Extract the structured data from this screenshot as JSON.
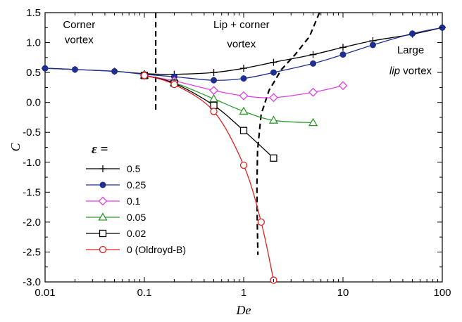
{
  "chart_data": {
    "type": "line",
    "xscale": "log",
    "xlim": [
      0.01,
      100
    ],
    "ylim": [
      -3.0,
      1.5
    ],
    "xlabel": "De",
    "ylabel": "C",
    "xticks": [
      0.01,
      0.1,
      1,
      10,
      100
    ],
    "xtick_labels": [
      "0.01",
      "0.1",
      "1",
      "10",
      "100"
    ],
    "yticks": [
      1.5,
      1.0,
      0.5,
      0.0,
      -0.5,
      -1.0,
      -1.5,
      -2.0,
      -2.5,
      -3.0
    ],
    "ytick_labels": [
      "1.5",
      "1.0",
      "0.5",
      "0.0",
      "-0.5",
      "-1.0",
      "-1.5",
      "-2.0",
      "-2.5",
      "-3.0"
    ],
    "grid": false,
    "legend": {
      "title": "ε =",
      "placement": "bottom-left"
    },
    "series": [
      {
        "name": "0.5",
        "color": "#000000",
        "marker": "plus",
        "x": [
          0.01,
          0.02,
          0.05,
          0.1,
          0.2,
          0.5,
          1,
          2,
          5,
          10,
          20,
          50,
          100
        ],
        "y": [
          0.57,
          0.55,
          0.52,
          0.48,
          0.47,
          0.5,
          0.57,
          0.67,
          0.8,
          0.92,
          1.03,
          1.14,
          1.25
        ]
      },
      {
        "name": "0.25",
        "color": "#1f2f8f",
        "marker": "filled-circle",
        "x": [
          0.01,
          0.02,
          0.05,
          0.1,
          0.2,
          0.5,
          1,
          2,
          5,
          10,
          20,
          50,
          100
        ],
        "y": [
          0.57,
          0.55,
          0.52,
          0.47,
          0.43,
          0.37,
          0.4,
          0.5,
          0.65,
          0.8,
          0.96,
          1.15,
          1.25
        ]
      },
      {
        "name": "0.1",
        "color": "#e040e0",
        "marker": "open-diamond",
        "x": [
          0.1,
          0.2,
          0.5,
          1,
          2,
          5,
          10
        ],
        "y": [
          0.45,
          0.36,
          0.2,
          0.11,
          0.08,
          0.17,
          0.28
        ]
      },
      {
        "name": "0.05",
        "color": "#2e9a2e",
        "marker": "open-triangle",
        "x": [
          0.1,
          0.2,
          0.5,
          1,
          2,
          5
        ],
        "y": [
          0.45,
          0.33,
          0.06,
          -0.15,
          -0.3,
          -0.34
        ]
      },
      {
        "name": "0.02",
        "color": "#000000",
        "marker": "open-square",
        "x": [
          0.1,
          0.2,
          0.5,
          1,
          2
        ],
        "y": [
          0.45,
          0.32,
          -0.05,
          -0.47,
          -0.93
        ]
      },
      {
        "name": "0 (Oldroyd-B)",
        "color": "#e02020",
        "marker": "open-circle",
        "x": [
          0.1,
          0.2,
          0.5,
          1,
          1.5,
          2
        ],
        "y": [
          0.45,
          0.3,
          -0.15,
          -1.05,
          -2.0,
          -2.97
        ]
      }
    ],
    "boundaries": [
      {
        "style": "dashed",
        "color": "#000000",
        "x": [
          0.13,
          0.13
        ],
        "y": [
          1.5,
          -0.13
        ]
      },
      {
        "style": "dashed",
        "color": "#000000",
        "x": [
          5.8,
          4.6,
          3.3,
          2.4,
          1.8,
          1.5,
          1.38,
          1.36,
          1.37,
          1.39
        ],
        "y": [
          1.5,
          1.1,
          0.8,
          0.55,
          0.2,
          -0.2,
          -0.8,
          -1.4,
          -2.0,
          -2.55
        ]
      }
    ],
    "annotations": [
      {
        "lines": [
          "Corner",
          "vortex"
        ],
        "x": 0.022,
        "y": [
          1.3,
          1.05
        ]
      },
      {
        "lines": [
          "Lip + corner",
          "vortex"
        ],
        "x": 0.95,
        "y": [
          1.3,
          0.98
        ]
      },
      {
        "lines": [
          "Large",
          "lip vortex"
        ],
        "italic_word": "lip",
        "x": 48,
        "y": [
          0.88,
          0.53
        ]
      }
    ]
  }
}
